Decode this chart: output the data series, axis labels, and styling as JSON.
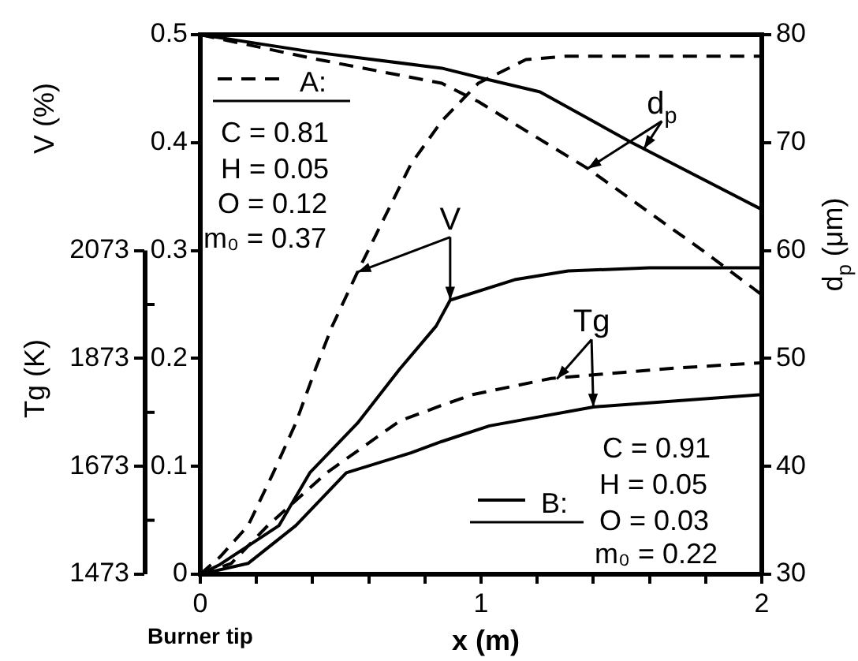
{
  "chart_data": {
    "type": "line",
    "xlabel": "x (m)",
    "ylabel": "V (%)",
    "y2label": "d$_{p}$ (μm)",
    "y3label": "Tg (K)",
    "xlim": [
      0,
      2
    ],
    "xticks": [
      0,
      {
        "value": 0.2,
        "label": null
      },
      {
        "value": 0.4,
        "label": null
      },
      {
        "value": 0.6,
        "label": null
      },
      {
        "value": 0.8,
        "label": null
      },
      1,
      {
        "value": 1.2,
        "label": null
      },
      {
        "value": 1.4,
        "label": null
      },
      {
        "value": 1.6,
        "label": null
      },
      {
        "value": 1.8,
        "label": null
      },
      2
    ],
    "ylim": [
      0,
      0.5
    ],
    "yticks": [
      0,
      0.1,
      0.2,
      0.3,
      0.4,
      0.5
    ],
    "y2lim": [
      30,
      80
    ],
    "y2ticks": [
      30,
      40,
      50,
      60,
      70,
      80
    ],
    "y3lim": [
      1473,
      2473
    ],
    "y3ticks": [
      1473,
      1673,
      1873,
      2073
    ],
    "grid": false,
    "legend": false,
    "marker": "none",
    "series": [
      {
        "color": "#000000",
        "line_style": "dashed",
        "x": [
          0,
          0.07,
          0.17,
          0.26,
          0.34,
          0.41,
          0.47,
          0.56,
          0.75,
          0.86,
          0.99,
          1.16,
          1.3,
          1.5,
          2
        ],
        "values": [
          0,
          0.016,
          0.045,
          0.094,
          0.14,
          0.19,
          0.23,
          0.28,
          0.38,
          0.42,
          0.455,
          0.477,
          0.48,
          0.48,
          0.48
        ]
      },
      {
        "color": "#000000",
        "line_style": "solid",
        "x": [
          0,
          0.07,
          0.28,
          0.39,
          0.56,
          0.71,
          0.84,
          0.89,
          1.12,
          1.31,
          1.6,
          2
        ],
        "values": [
          0,
          0.009,
          0.045,
          0.094,
          0.14,
          0.19,
          0.23,
          0.254,
          0.273,
          0.281,
          0.284,
          0.284
        ]
      },
      {
        "color": "#000000",
        "line_style": "solid",
        "axis": "y2",
        "x": [
          0,
          0.4,
          0.86,
          1.0,
          1.21,
          1.53,
          2
        ],
        "values": [
          80,
          78.4,
          76.9,
          76,
          74.7,
          70.1,
          63.8
        ]
      },
      {
        "color": "#000000",
        "line_style": "dashed",
        "axis": "y2",
        "x": [
          0,
          0.4,
          0.86,
          0.99,
          1.38,
          1.8,
          2
        ],
        "values": [
          80,
          77.8,
          75.5,
          73.8,
          67.6,
          59.8,
          55.9
        ]
      },
      {
        "color": "#000000",
        "line_style": "dashed",
        "axis": "y3",
        "x": [
          0,
          0.11,
          0.24,
          0.45,
          0.71,
          0.86,
          0.97,
          1.25,
          1.69,
          2
        ],
        "values": [
          1473,
          1493,
          1563,
          1661,
          1757,
          1786,
          1806,
          1836,
          1855,
          1865
        ]
      },
      {
        "color": "#000000",
        "line_style": "solid",
        "axis": "y3",
        "x": [
          0,
          0.17,
          0.34,
          0.52,
          0.75,
          0.86,
          1.03,
          1.4,
          2
        ],
        "values": [
          1473,
          1493,
          1563,
          1661,
          1698,
          1719,
          1748,
          1783,
          1806
        ]
      }
    ],
    "annotations": [
      "A:",
      "C = 0.81",
      "H = 0.05",
      "O = 0.12",
      "m₀ = 0.37",
      "B:",
      "C = 0.91",
      "H = 0.05",
      "O = 0.03",
      "m₀ = 0.22",
      "Burner tip",
      {
        "text": "V",
        "x": 0.89,
        "y": 0.254
      },
      {
        "text": "d$_{p}$",
        "x": 1.38,
        "y": 0.376
      },
      {
        "text": "Tg",
        "x": 1.27,
        "y": 0.181
      }
    ]
  }
}
